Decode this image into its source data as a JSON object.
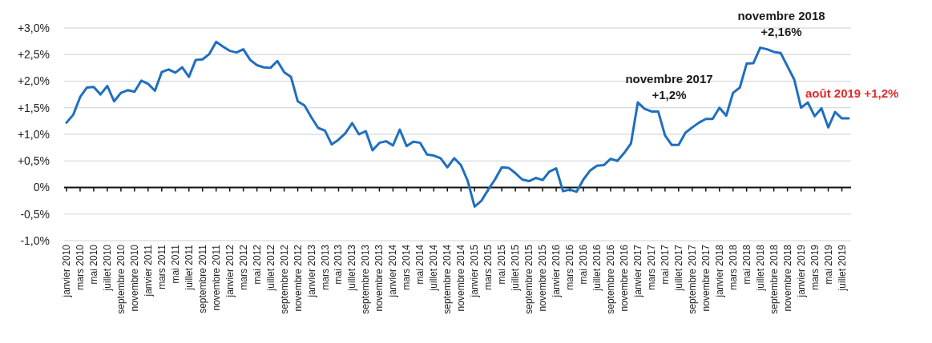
{
  "chart_data": {
    "type": "line",
    "categories": [
      "janvier 2010",
      null,
      "mars 2010",
      null,
      "mai 2010",
      null,
      "juillet 2010",
      null,
      "septembre 2010",
      null,
      "novembre 2010",
      null,
      "janvier 2011",
      null,
      "mars 2011",
      null,
      "mai 2011",
      null,
      "juillet 2011",
      null,
      "septembre 2011",
      null,
      "novembre 2011",
      null,
      "janvier 2012",
      null,
      "mars 2012",
      null,
      "mai 2012",
      null,
      "juillet 2012",
      null,
      "septembre 2012",
      null,
      "novembre 2012",
      null,
      "janvier 2013",
      null,
      "mars 2013",
      null,
      "mai 2013",
      null,
      "juillet 2013",
      null,
      "septembre 2013",
      null,
      "novembre 2013",
      null,
      "janvier 2014",
      null,
      "mars 2014",
      null,
      "mai 2014",
      null,
      "juillet 2014",
      null,
      "septembre 2014",
      null,
      "novembre 2014",
      null,
      "janvier 2015",
      null,
      "mars 2015",
      null,
      "mai 2015",
      null,
      "juillet 2015",
      null,
      "septembre 2015",
      null,
      "novembre 2015",
      null,
      "janvier 2016",
      null,
      "mars 2016",
      null,
      "mai 2016",
      null,
      "juillet 2016",
      null,
      "septembre 2016",
      null,
      "novembre 2016",
      null,
      "janvier 2017",
      null,
      "mars 2017",
      null,
      "mai 2017",
      null,
      "juillet 2017",
      null,
      "septembre 2017",
      null,
      "novembre 2017",
      null,
      "janvier 2018",
      null,
      "mars 2018",
      null,
      "mai 2018",
      null,
      "juillet 2018",
      null,
      "septembre 2018",
      null,
      "novembre 2018",
      null,
      "janvier 2019",
      null,
      "mars 2019",
      null,
      "mai 2019",
      null,
      "juillet 2019",
      null
    ],
    "series": [
      {
        "color": "#1f6fbf",
        "values": [
          1.22,
          1.37,
          1.7,
          1.88,
          1.89,
          1.75,
          1.91,
          1.62,
          1.78,
          1.83,
          1.8,
          2.01,
          1.95,
          1.82,
          2.17,
          2.22,
          2.16,
          2.26,
          2.08,
          2.4,
          2.41,
          2.51,
          2.74,
          2.65,
          2.57,
          2.54,
          2.6,
          2.4,
          2.3,
          2.26,
          2.25,
          2.38,
          2.17,
          2.08,
          1.62,
          1.54,
          1.32,
          1.12,
          1.07,
          0.81,
          0.9,
          1.02,
          1.21,
          1.0,
          1.06,
          0.7,
          0.84,
          0.87,
          0.79,
          1.09,
          0.78,
          0.86,
          0.84,
          0.62,
          0.6,
          0.55,
          0.38,
          0.55,
          0.42,
          0.12,
          -0.36,
          -0.25,
          -0.04,
          0.15,
          0.38,
          0.37,
          0.27,
          0.15,
          0.12,
          0.18,
          0.14,
          0.3,
          0.36,
          -0.07,
          -0.04,
          -0.08,
          0.15,
          0.32,
          0.41,
          0.42,
          0.54,
          0.5,
          0.65,
          0.83,
          1.6,
          1.48,
          1.43,
          1.43,
          0.98,
          0.8,
          0.8,
          1.03,
          1.13,
          1.22,
          1.29,
          1.29,
          1.5,
          1.35,
          1.78,
          1.88,
          2.33,
          2.34,
          2.63,
          2.6,
          2.55,
          2.53,
          2.28,
          2.03,
          1.5,
          1.6,
          1.34,
          1.49,
          1.13,
          1.42,
          1.3,
          1.3
        ]
      }
    ],
    "ylim": [
      -1.0,
      3.0
    ],
    "yticks": [
      {
        "value": -1.0,
        "label": "-1,0%"
      },
      {
        "value": -0.5,
        "label": "-0,5%"
      },
      {
        "value": 0,
        "label": "0%"
      },
      {
        "value": 0.5,
        "label": "+0,5%"
      },
      {
        "value": 1.0,
        "label": "+1,0%"
      },
      {
        "value": 1.5,
        "label": "+1,5%"
      },
      {
        "value": 2.0,
        "label": "+2,0%"
      },
      {
        "value": 2.5,
        "label": "+2,5%"
      },
      {
        "value": 3.0,
        "label": "+3,0%"
      }
    ],
    "grid": "y",
    "annotations": [
      "novembre 2017\n+1,2%",
      "novembre 2018\n+2,16%",
      "août 2019 +1,2%"
    ]
  }
}
